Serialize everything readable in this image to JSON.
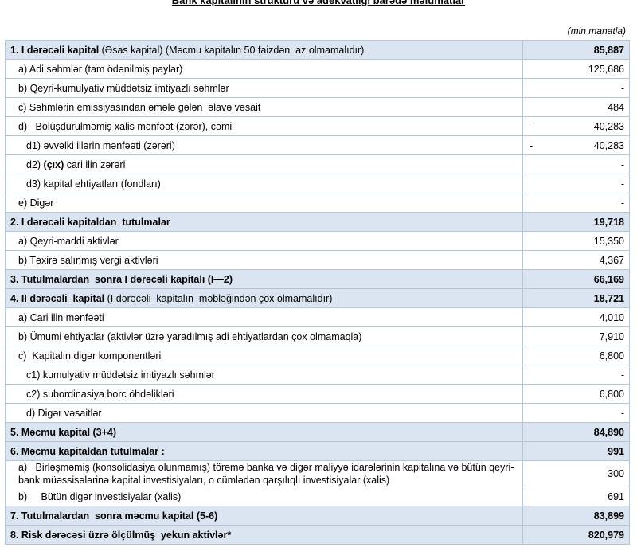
{
  "header": {
    "title": "Bank kapitalının strukturu və adekvatlığı barədə məlumatlar",
    "unit": "(min manatla)"
  },
  "table": {
    "rows": [
      {
        "section": true,
        "indent": 0,
        "label": [
          {
            "text": "1. I dərəcəli kapital",
            "bold": true
          },
          {
            "text": " (Əsas kapital) (Məcmu kapitalın 50 faizdən  az olmamalıdır)",
            "bold": false
          }
        ],
        "value": "85,887"
      },
      {
        "section": false,
        "indent": 1,
        "label": [
          {
            "text": "a) Adi səhmlər (tam ödənilmiş paylar)",
            "bold": false
          }
        ],
        "value": "125,686"
      },
      {
        "section": false,
        "indent": 1,
        "label": [
          {
            "text": "b) Qeyri-kumulyativ müddətsiz imtiyazlı səhmlər",
            "bold": false
          }
        ],
        "value": "-"
      },
      {
        "section": false,
        "indent": 1,
        "label": [
          {
            "text": "c) Səhmlərin emissiyasından əmələ gələn  əlavə vəsait",
            "bold": false
          }
        ],
        "value": "484"
      },
      {
        "section": false,
        "indent": 1,
        "label": [
          {
            "text": "d)   Bölüşdürülməmiş xalis mənfəət (zərər), cəmi",
            "bold": false
          }
        ],
        "sign": "-",
        "value": "40,283"
      },
      {
        "section": false,
        "indent": 2,
        "label": [
          {
            "text": "d1) əvvəlki illərin mənfəəti (zərəri)",
            "bold": false
          }
        ],
        "sign": "-",
        "value": "40,283"
      },
      {
        "section": false,
        "indent": 2,
        "label": [
          {
            "text": "d2) ",
            "bold": false
          },
          {
            "text": "(çıx)",
            "bold": true
          },
          {
            "text": " cari ilin zərəri",
            "bold": false
          }
        ],
        "value": "-"
      },
      {
        "section": false,
        "indent": 2,
        "label": [
          {
            "text": "d3) kapital ehtiyatları (fondları)",
            "bold": false
          }
        ],
        "value": "-"
      },
      {
        "section": false,
        "indent": 1,
        "label": [
          {
            "text": "e) Digər",
            "bold": false
          }
        ],
        "value": "-"
      },
      {
        "section": true,
        "indent": 0,
        "label": [
          {
            "text": "2. I dərəcəli kapitaldan  tutulmalar",
            "bold": true
          }
        ],
        "value": "19,718"
      },
      {
        "section": false,
        "indent": 1,
        "label": [
          {
            "text": "a) Qeyri-maddi aktivlər",
            "bold": false
          }
        ],
        "value": "15,350"
      },
      {
        "section": false,
        "indent": 1,
        "label": [
          {
            "text": "b) Təxirə salınmış vergi aktivləri",
            "bold": false
          }
        ],
        "value": "4,367"
      },
      {
        "section": true,
        "indent": 0,
        "label": [
          {
            "text": "3. Tutulmalardan  sonra I dərəcəli kapitalı (I—2)",
            "bold": true
          }
        ],
        "value": "66,169"
      },
      {
        "section": true,
        "indent": 0,
        "label": [
          {
            "text": "4. II dərəcəli  kapital",
            "bold": true
          },
          {
            "text": " (I dərəcəli  kapitalın  məbləğindən çox olmamalıdır)",
            "bold": false
          }
        ],
        "value": "18,721"
      },
      {
        "section": false,
        "indent": 1,
        "label": [
          {
            "text": "a) Cari ilin mənfəəti",
            "bold": false
          }
        ],
        "value": "4,010"
      },
      {
        "section": false,
        "indent": 1,
        "label": [
          {
            "text": "b) Ümumi ehtiyatlar (aktivlər üzrə yaradılmış adi ehtiyatlardan çox olmamaqla)",
            "bold": false
          }
        ],
        "value": "7,910"
      },
      {
        "section": false,
        "indent": 1,
        "label": [
          {
            "text": "c)  Kapitalın digər komponentləri",
            "bold": false
          }
        ],
        "value": "6,800"
      },
      {
        "section": false,
        "indent": 2,
        "label": [
          {
            "text": "c1) kumulyativ müddətsiz imtiyazlı səhmlər",
            "bold": false
          }
        ],
        "value": "-"
      },
      {
        "section": false,
        "indent": 2,
        "label": [
          {
            "text": "c2) subordinasiya borc öhdəlikləri",
            "bold": false
          }
        ],
        "value": "6,800"
      },
      {
        "section": false,
        "indent": 2,
        "label": [
          {
            "text": "d) Digər vəsaitlər",
            "bold": false
          }
        ],
        "value": "-"
      },
      {
        "section": true,
        "indent": 0,
        "label": [
          {
            "text": "5. Məcmu kapital (3+4)",
            "bold": true
          }
        ],
        "value": "84,890"
      },
      {
        "section": true,
        "indent": 0,
        "label": [
          {
            "text": "6. Məcmu kapitaldan tutulmalar :",
            "bold": true
          }
        ],
        "value": "991"
      },
      {
        "section": false,
        "indent": 1,
        "label": [
          {
            "text": "a)   Birləşməmiş (konsolidasiya olunmamış) törəmə banka və digər maliyyə idarələrinin kapitalına və bütün qeyri-bank müəssisələrinə kapital investisiyaları, o cümlədən qarşılıqlı investisiyalar (xalis)",
            "bold": false
          }
        ],
        "value": "300"
      },
      {
        "section": false,
        "indent": 1,
        "label": [
          {
            "text": "b)     Bütün digər investisiyalar (xalis)",
            "bold": false
          }
        ],
        "value": "691"
      },
      {
        "section": true,
        "indent": 0,
        "label": [
          {
            "text": "7. Tutulmalardan  sonra məcmu kapital (5-6)",
            "bold": true
          }
        ],
        "value": "83,899"
      },
      {
        "section": true,
        "indent": 0,
        "label": [
          {
            "text": "8. Risk dərəcəsi üzrə ölçülmüş  yekun aktivlər*",
            "bold": true
          }
        ],
        "value": "820,979"
      }
    ]
  }
}
